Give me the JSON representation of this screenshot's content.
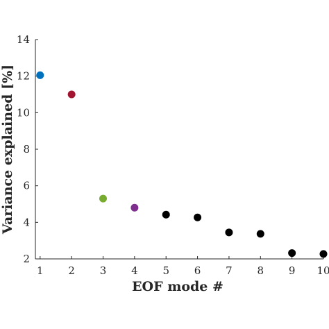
{
  "chart_data": {
    "type": "scatter",
    "xlabel": "EOF mode #",
    "ylabel": "Variance explained [%]",
    "xlim": [
      0.85,
      10
    ],
    "ylim": [
      2,
      14
    ],
    "xticks": [
      1,
      2,
      3,
      4,
      5,
      6,
      7,
      8,
      9,
      10
    ],
    "yticks": [
      2,
      4,
      6,
      8,
      10,
      12,
      14
    ],
    "grid": false,
    "points": [
      {
        "x": 1,
        "y": 12.05,
        "color": "#0072BD"
      },
      {
        "x": 2,
        "y": 11.0,
        "color": "#A2142F"
      },
      {
        "x": 3,
        "y": 5.3,
        "color": "#77AC30"
      },
      {
        "x": 4,
        "y": 4.8,
        "color": "#7E2F8E"
      },
      {
        "x": 5,
        "y": 4.42,
        "color": "#000000"
      },
      {
        "x": 6,
        "y": 4.27,
        "color": "#000000"
      },
      {
        "x": 7,
        "y": 3.45,
        "color": "#000000"
      },
      {
        "x": 8,
        "y": 3.37,
        "color": "#000000"
      },
      {
        "x": 9,
        "y": 2.32,
        "color": "#000000"
      },
      {
        "x": 10,
        "y": 2.27,
        "color": "#000000"
      }
    ]
  }
}
